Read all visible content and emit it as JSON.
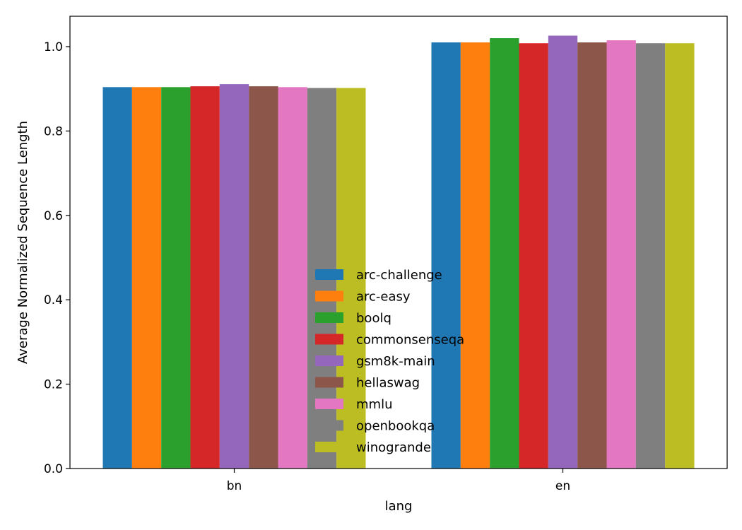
{
  "chart_data": {
    "type": "bar",
    "title": "",
    "xlabel": "lang",
    "ylabel": "Average Normalized Sequence Length",
    "ylim": [
      0,
      1.072
    ],
    "yticks": [
      "0.0",
      "0.2",
      "0.4",
      "0.6",
      "0.8",
      "1.0"
    ],
    "ytick_values": [
      0.0,
      0.2,
      0.4,
      0.6,
      0.8,
      1.0
    ],
    "categories": [
      "bn",
      "en"
    ],
    "legend_position": "lower-center",
    "series": [
      {
        "name": "arc-challenge",
        "color": "#1f77b4",
        "values": [
          0.904,
          1.01
        ]
      },
      {
        "name": "arc-easy",
        "color": "#ff7f0e",
        "values": [
          0.904,
          1.01
        ]
      },
      {
        "name": "boolq",
        "color": "#2ca02c",
        "values": [
          0.904,
          1.02
        ]
      },
      {
        "name": "commonsenseqa",
        "color": "#d62728",
        "values": [
          0.906,
          1.008
        ]
      },
      {
        "name": "gsm8k-main",
        "color": "#9467bd",
        "values": [
          0.911,
          1.026
        ]
      },
      {
        "name": "hellaswag",
        "color": "#8c564b",
        "values": [
          0.906,
          1.01
        ]
      },
      {
        "name": "mmlu",
        "color": "#e377c2",
        "values": [
          0.904,
          1.015
        ]
      },
      {
        "name": "openbookqa",
        "color": "#7f7f7f",
        "values": [
          0.902,
          1.008
        ]
      },
      {
        "name": "winogrande",
        "color": "#bcbd22",
        "values": [
          0.902,
          1.008
        ]
      }
    ]
  }
}
